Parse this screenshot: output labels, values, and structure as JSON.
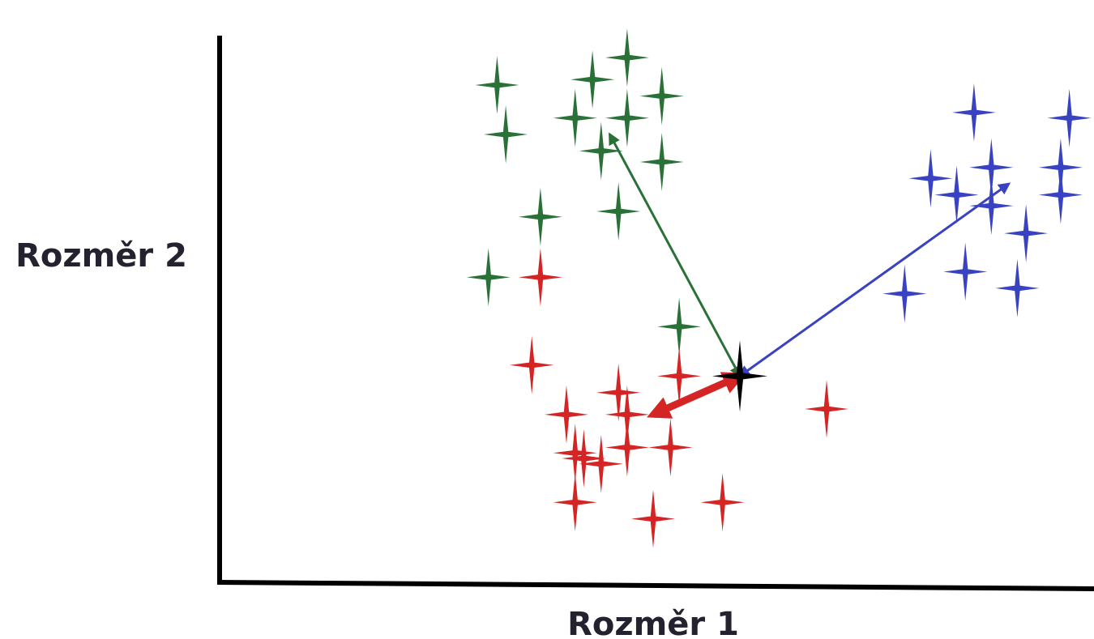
{
  "chart_data": {
    "type": "scatter",
    "title": "",
    "xlabel": "Rozměr 1",
    "ylabel": "Rozměr 2",
    "xlim": [
      0,
      100
    ],
    "ylim": [
      0,
      100
    ],
    "grid": false,
    "legend": "none",
    "series": [
      {
        "color": "#2a7138",
        "points": [
          [
            47,
            96
          ],
          [
            32,
            91
          ],
          [
            43,
            92
          ],
          [
            51,
            89
          ],
          [
            41,
            85
          ],
          [
            47,
            85
          ],
          [
            33,
            82
          ],
          [
            44,
            79
          ],
          [
            51,
            77
          ],
          [
            37,
            67
          ],
          [
            46,
            68
          ],
          [
            31,
            56
          ],
          [
            53,
            47
          ]
        ]
      },
      {
        "color": "#d42424",
        "points": [
          [
            37,
            56
          ],
          [
            36,
            40
          ],
          [
            53,
            38
          ],
          [
            46,
            35
          ],
          [
            40,
            31
          ],
          [
            47,
            31
          ],
          [
            47,
            25
          ],
          [
            41,
            24
          ],
          [
            44,
            22
          ],
          [
            52,
            25
          ],
          [
            70,
            32
          ],
          [
            42,
            23
          ],
          [
            41,
            15
          ],
          [
            50,
            12
          ],
          [
            58,
            15
          ]
        ]
      },
      {
        "color": "#3942c0",
        "points": [
          [
            87,
            86
          ],
          [
            98,
            85
          ],
          [
            89,
            76
          ],
          [
            97,
            76
          ],
          [
            82,
            74
          ],
          [
            85,
            71
          ],
          [
            89,
            69
          ],
          [
            97,
            71
          ],
          [
            93,
            64
          ],
          [
            86,
            57
          ],
          [
            92,
            54
          ],
          [
            79,
            53
          ]
        ]
      }
    ],
    "query_point": {
      "x": 60,
      "y": 38,
      "color": "#000000"
    },
    "neighbor_links": [
      {
        "from": [
          60,
          38
        ],
        "to": [
          45,
          82
        ],
        "color": "#2a7138",
        "emphasis": false
      },
      {
        "from": [
          60,
          38
        ],
        "to": [
          91,
          73
        ],
        "color": "#3942c0",
        "emphasis": false
      },
      {
        "from": [
          60,
          38
        ],
        "to": [
          50,
          31
        ],
        "color": "#d42424",
        "emphasis": true
      }
    ]
  }
}
